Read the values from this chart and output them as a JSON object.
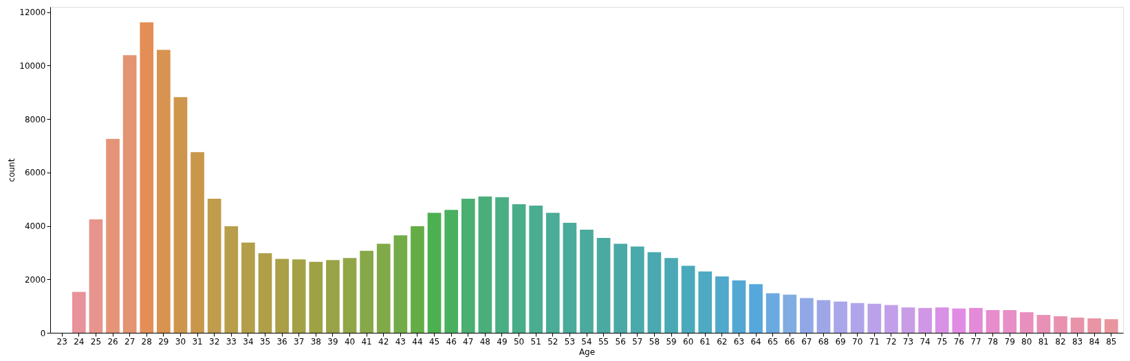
{
  "chart_data": {
    "type": "bar",
    "xlabel": "Age",
    "ylabel": "count",
    "categories": [
      "23",
      "24",
      "25",
      "26",
      "27",
      "28",
      "29",
      "30",
      "31",
      "32",
      "33",
      "34",
      "35",
      "36",
      "37",
      "38",
      "39",
      "40",
      "41",
      "42",
      "43",
      "44",
      "45",
      "46",
      "47",
      "48",
      "49",
      "50",
      "51",
      "52",
      "53",
      "54",
      "55",
      "56",
      "57",
      "58",
      "59",
      "60",
      "61",
      "62",
      "63",
      "64",
      "65",
      "66",
      "67",
      "68",
      "69",
      "70",
      "71",
      "72",
      "73",
      "74",
      "75",
      "76",
      "77",
      "78",
      "79",
      "80",
      "81",
      "82",
      "83",
      "84",
      "85"
    ],
    "values": [
      0,
      1530,
      4250,
      7260,
      10390,
      11620,
      10590,
      8820,
      6760,
      5020,
      3990,
      3380,
      2980,
      2770,
      2750,
      2660,
      2720,
      2800,
      3070,
      3330,
      3650,
      3990,
      4490,
      4600,
      5020,
      5100,
      5080,
      4810,
      4760,
      4490,
      4120,
      3860,
      3550,
      3330,
      3230,
      3020,
      2800,
      2510,
      2300,
      2110,
      1960,
      1820,
      1480,
      1430,
      1300,
      1220,
      1170,
      1110,
      1090,
      1040,
      950,
      930,
      950,
      910,
      930,
      850,
      850,
      770,
      670,
      620,
      570,
      540,
      510
    ],
    "colors": [
      "#e89399",
      "#e8929a",
      "#e8948e",
      "#e59478",
      "#e39470",
      "#e28e56",
      "#d89350",
      "#cd964c",
      "#c9974a",
      "#c09c4c",
      "#b89e4b",
      "#b39f4a",
      "#ae9f48",
      "#a89f47",
      "#a4a046",
      "#9ea245",
      "#99a347",
      "#91a647",
      "#86a848",
      "#80aa48",
      "#72ac48",
      "#64ad46",
      "#4cb050",
      "#49b060",
      "#4aaf70",
      "#4aae7a",
      "#4aae84",
      "#4aad8a",
      "#4aad90",
      "#4aab96",
      "#4aab9a",
      "#4aaa9e",
      "#4aaaa2",
      "#4aa9a6",
      "#4aa9ab",
      "#4aa9b0",
      "#4aa9b5",
      "#4ba9bc",
      "#4daac2",
      "#50a9ca",
      "#52a8d2",
      "#55a8dc",
      "#6aaae0",
      "#80ace2",
      "#90a8e6",
      "#9ea6e8",
      "#a9a6ea",
      "#b0a4ea",
      "#b9a2ea",
      "#c29fe8",
      "#c99ce6",
      "#d196e6",
      "#d991e6",
      "#e18ce4",
      "#e48ad8",
      "#e78ccc",
      "#e88ec6",
      "#e88fbe",
      "#e890b6",
      "#e892b0",
      "#e893aa",
      "#e894a4",
      "#e8959e"
    ],
    "ylim": [
      0,
      12200
    ],
    "yticks": [
      0,
      2000,
      4000,
      6000,
      8000,
      10000,
      12000
    ],
    "grid": false,
    "legend": false
  }
}
